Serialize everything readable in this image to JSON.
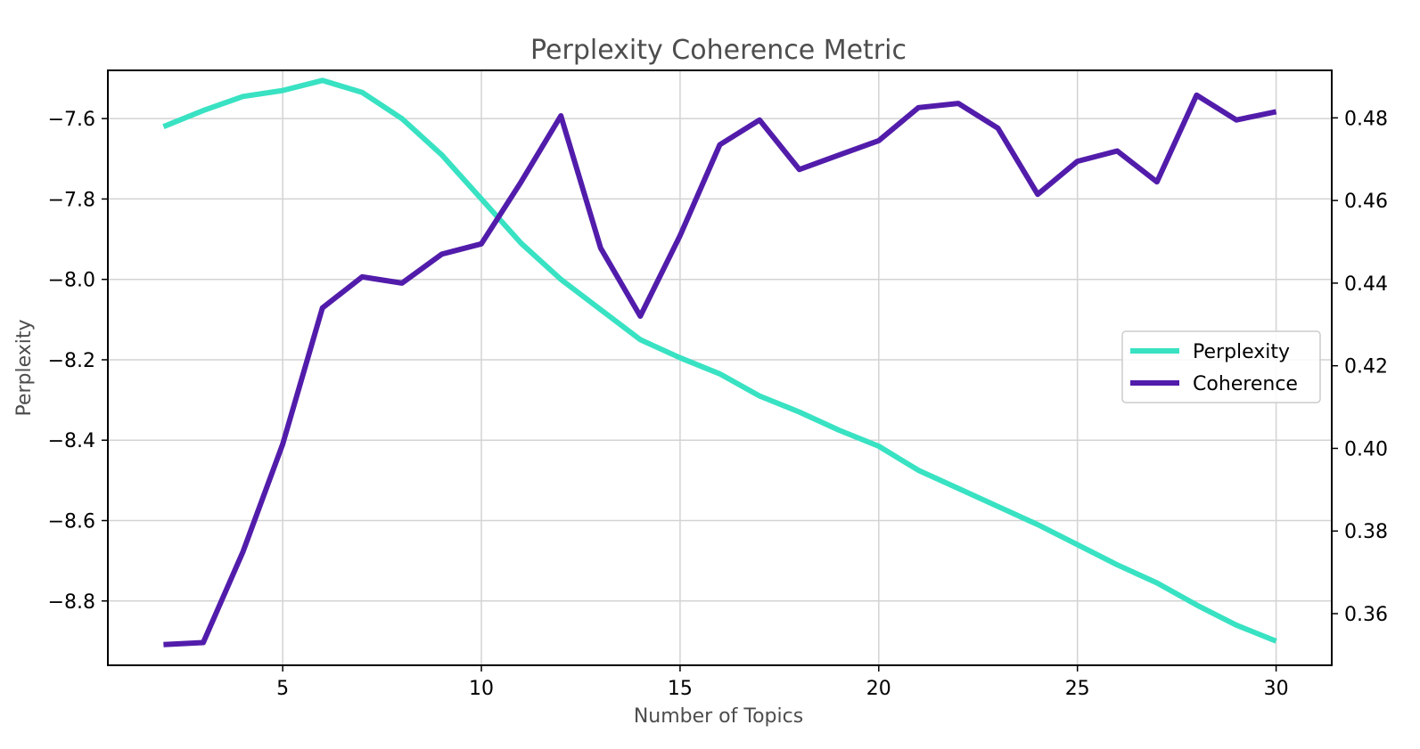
{
  "chart_data": {
    "type": "line",
    "title": "Perplexity Coherence Metric",
    "xlabel": "Number of Topics",
    "ylabel": "Perplexity",
    "y2label": "",
    "x": [
      2,
      3,
      4,
      5,
      6,
      7,
      8,
      9,
      10,
      11,
      12,
      13,
      14,
      15,
      16,
      17,
      18,
      19,
      20,
      21,
      22,
      23,
      24,
      25,
      26,
      27,
      28,
      29,
      30
    ],
    "xlim": [
      0.6,
      31.4
    ],
    "xticks": [
      5,
      10,
      15,
      20,
      25,
      30
    ],
    "xtick_labels": [
      "5",
      "10",
      "15",
      "20",
      "25",
      "30"
    ],
    "ylim": [
      -8.96,
      -7.48
    ],
    "yticks": [
      -8.8,
      -8.6,
      -8.4,
      -8.2,
      -8.0,
      -7.8,
      -7.6
    ],
    "ytick_labels": [
      "−8.8",
      "−8.6",
      "−8.4",
      "−8.2",
      "−8.0",
      "−7.8",
      "−7.6"
    ],
    "y2lim": [
      0.3475,
      0.4915
    ],
    "y2ticks": [
      0.36,
      0.38,
      0.4,
      0.42,
      0.44,
      0.46,
      0.48
    ],
    "y2tick_labels": [
      "0.36",
      "0.38",
      "0.40",
      "0.42",
      "0.44",
      "0.46",
      "0.48"
    ],
    "grid": true,
    "legend_position": "center-right",
    "series": [
      {
        "name": "Perplexity",
        "axis": "left",
        "color": "#38e2c2",
        "values": [
          -7.62,
          -7.58,
          -7.545,
          -7.53,
          -7.505,
          -7.535,
          -7.6,
          -7.69,
          -7.8,
          -7.91,
          -8.0,
          -8.075,
          -8.15,
          -8.195,
          -8.235,
          -8.29,
          -8.33,
          -8.375,
          -8.415,
          -8.475,
          -8.52,
          -8.565,
          -8.61,
          -8.66,
          -8.71,
          -8.755,
          -8.81,
          -8.86,
          -8.9
        ]
      },
      {
        "name": "Coherence",
        "axis": "right",
        "color": "#521cab",
        "values": [
          0.3525,
          0.353,
          0.375,
          0.401,
          0.434,
          0.4415,
          0.44,
          0.447,
          0.4495,
          0.4645,
          0.4805,
          0.4485,
          0.432,
          0.4515,
          0.4735,
          0.4795,
          0.4675,
          0.471,
          0.4745,
          0.4825,
          0.4835,
          0.4775,
          0.4615,
          0.4695,
          0.472,
          0.4645,
          0.4855,
          0.4795,
          0.4815
        ]
      }
    ]
  }
}
